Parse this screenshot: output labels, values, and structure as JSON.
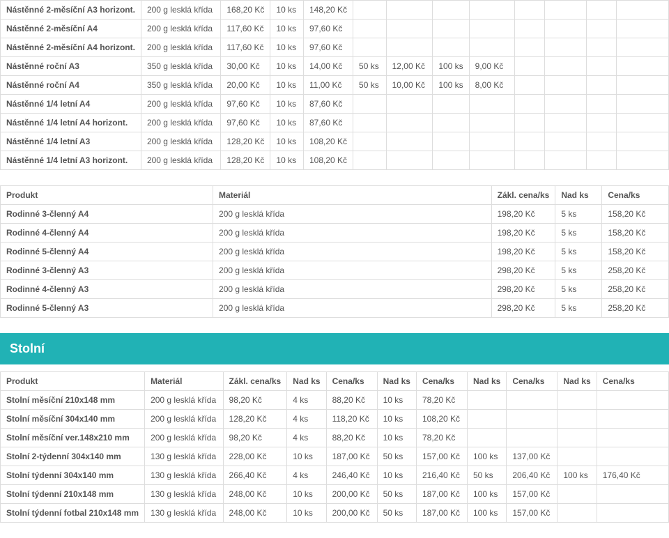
{
  "table1": {
    "cols": 13,
    "rows": [
      [
        "Nástěnné 2-měsíční A3 horizont.",
        "200 g lesklá křída",
        "168,20 Kč",
        "10 ks",
        "148,20 Kč",
        "",
        "",
        "",
        "",
        "",
        "",
        "",
        ""
      ],
      [
        "Nástěnné 2-měsíční A4",
        "200 g lesklá křída",
        "117,60 Kč",
        "10 ks",
        "97,60 Kč",
        "",
        "",
        "",
        "",
        "",
        "",
        "",
        ""
      ],
      [
        "Nástěnné 2-měsíční A4 horizont.",
        "200 g lesklá křída",
        "117,60 Kč",
        "10 ks",
        "97,60 Kč",
        "",
        "",
        "",
        "",
        "",
        "",
        "",
        ""
      ],
      [
        "Nástěnné roční A3",
        "350 g lesklá křída",
        "30,00 Kč",
        "10 ks",
        "14,00 Kč",
        "50 ks",
        "12,00 Kč",
        "100 ks",
        "9,00 Kč",
        "",
        "",
        "",
        ""
      ],
      [
        "Nástěnné roční A4",
        "350 g lesklá křída",
        "20,00 Kč",
        "10 ks",
        "11,00 Kč",
        "50 ks",
        "10,00 Kč",
        "100 ks",
        "8,00 Kč",
        "",
        "",
        "",
        ""
      ],
      [
        "Nástěnné 1/4 letní A4",
        "200 g lesklá křída",
        "97,60 Kč",
        "10 ks",
        "87,60 Kč",
        "",
        "",
        "",
        "",
        "",
        "",
        "",
        ""
      ],
      [
        "Nástěnné 1/4 letní A4 horizont.",
        "200 g lesklá křída",
        "97,60 Kč",
        "10 ks",
        "87,60 Kč",
        "",
        "",
        "",
        "",
        "",
        "",
        "",
        ""
      ],
      [
        "Nástěnné 1/4 letní A3",
        "200 g lesklá křída",
        "128,20 Kč",
        "10 ks",
        "108,20 Kč",
        "",
        "",
        "",
        "",
        "",
        "",
        "",
        ""
      ],
      [
        "Nástěnné 1/4 letní A3 horizont.",
        "200 g lesklá křída",
        "128,20 Kč",
        "10 ks",
        "108,20 Kč",
        "",
        "",
        "",
        "",
        "",
        "",
        "",
        ""
      ]
    ]
  },
  "table2": {
    "header": [
      "Produkt",
      "Materiál",
      "Zákl. cena/ks",
      "Nad ks",
      "Cena/ks"
    ],
    "rows": [
      [
        "Rodinné 3-členný A4",
        "200 g lesklá křída",
        "198,20 Kč",
        "5 ks",
        "158,20 Kč"
      ],
      [
        "Rodinné 4-členný A4",
        "200 g lesklá křída",
        "198,20 Kč",
        "5 ks",
        "158,20 Kč"
      ],
      [
        "Rodinné 5-členný A4",
        "200 g lesklá křída",
        "198,20 Kč",
        "5 ks",
        "158,20 Kč"
      ],
      [
        "Rodinné 3-členný A3",
        "200 g lesklá křída",
        "298,20 Kč",
        "5 ks",
        "258,20 Kč"
      ],
      [
        "Rodinné 4-členný A3",
        "200 g lesklá křída",
        "298,20 Kč",
        "5 ks",
        "258,20 Kč"
      ],
      [
        "Rodinné 5-členný A3",
        "200 g lesklá křída",
        "298,20 Kč",
        "5 ks",
        "258,20 Kč"
      ]
    ]
  },
  "section_title": "Stolní",
  "table3": {
    "header": [
      "Produkt",
      "Materiál",
      "Zákl. cena/ks",
      "Nad ks",
      "Cena/ks",
      "Nad ks",
      "Cena/ks",
      "Nad ks",
      "Cena/ks",
      "Nad ks",
      "Cena/ks"
    ],
    "rows": [
      [
        "Stolní měsíční 210x148 mm",
        "200 g lesklá křída",
        "98,20 Kč",
        "4 ks",
        "88,20 Kč",
        "10 ks",
        "78,20 Kč",
        "",
        "",
        "",
        ""
      ],
      [
        "Stolní měsíční 304x140 mm",
        "200 g lesklá křída",
        "128,20 Kč",
        "4 ks",
        "118,20 Kč",
        "10 ks",
        "108,20 Kč",
        "",
        "",
        "",
        ""
      ],
      [
        "Stolní měsíční ver.148x210 mm",
        "200 g lesklá křída",
        "98,20 Kč",
        "4 ks",
        "88,20 Kč",
        "10 ks",
        "78,20 Kč",
        "",
        "",
        "",
        ""
      ],
      [
        "Stolní 2-týdenní 304x140 mm",
        "130 g lesklá křída",
        "228,00 Kč",
        "10 ks",
        "187,00 Kč",
        "50 ks",
        "157,00 Kč",
        "100 ks",
        "137,00 Kč",
        "",
        ""
      ],
      [
        "Stolní týdenní 304x140 mm",
        "130 g lesklá křída",
        "266,40 Kč",
        "4 ks",
        "246,40 Kč",
        "10 ks",
        "216,40 Kč",
        "50 ks",
        "206,40 Kč",
        "100 ks",
        "176,40 Kč"
      ],
      [
        "Stolní týdenní 210x148 mm",
        "130 g lesklá křída",
        "248,00 Kč",
        "10 ks",
        "200,00 Kč",
        "50 ks",
        "187,00 Kč",
        "100 ks",
        "157,00 Kč",
        "",
        ""
      ],
      [
        "Stolní týdenní fotbal 210x148 mm",
        "130 g lesklá křída",
        "248,00 Kč",
        "10 ks",
        "200,00 Kč",
        "50 ks",
        "187,00 Kč",
        "100 ks",
        "157,00 Kč",
        "",
        ""
      ]
    ]
  },
  "col_widths": {
    "t1": [
      "19%",
      "12%",
      "7%",
      "5%",
      "7%",
      "5%",
      "7%",
      "5%",
      "7%",
      "5%",
      "7%",
      "5%",
      "9%"
    ],
    "t2": [
      "32%",
      "42%",
      "9%",
      "7%",
      "10%"
    ],
    "t3": [
      "19%",
      "12%",
      "8%",
      "5%",
      "8%",
      "5%",
      "8%",
      "5%",
      "8%",
      "5%",
      "17%"
    ]
  }
}
